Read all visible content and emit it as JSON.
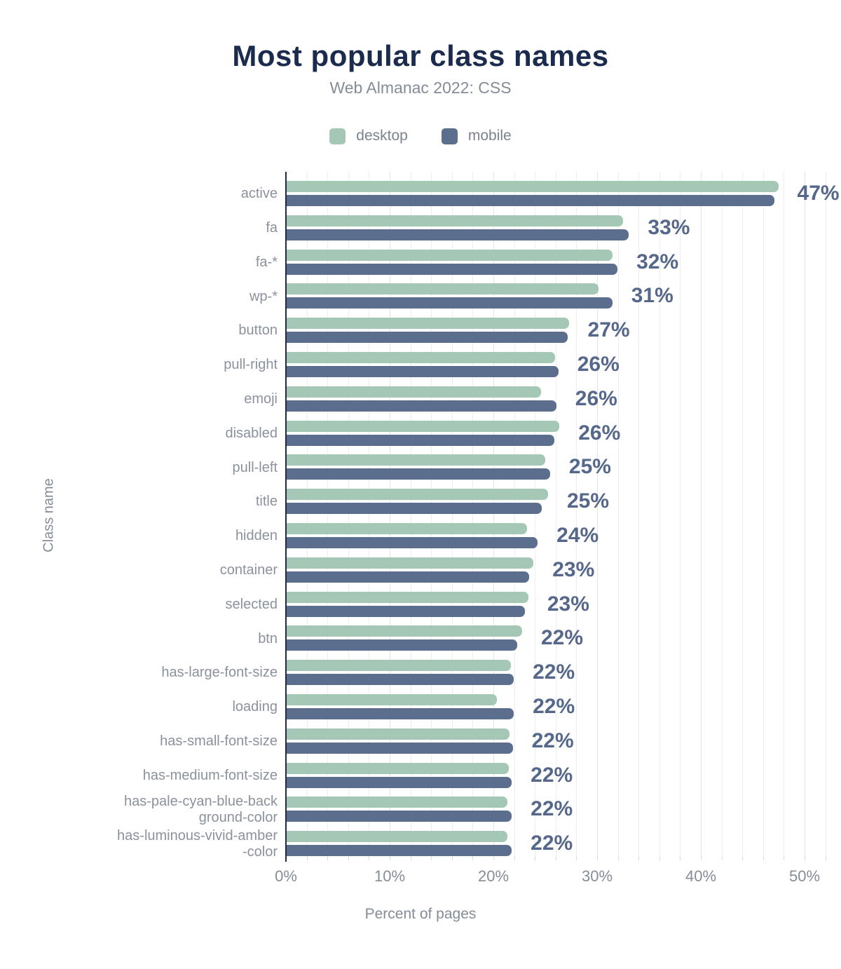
{
  "header": {
    "title": "Most popular class names",
    "subtitle": "Web Almanac 2022: CSS"
  },
  "legend": [
    {
      "name": "desktop",
      "color": "#a4c8b5"
    },
    {
      "name": "mobile",
      "color": "#5c6e8d"
    }
  ],
  "axes": {
    "x_title": "Percent of pages",
    "y_title": "Class name",
    "x_tick_labels": [
      "0%",
      "10%",
      "20%",
      "30%",
      "40%",
      "50%"
    ],
    "x_tick_values": [
      0,
      10,
      20,
      30,
      40,
      50
    ]
  },
  "colors": {
    "title_navy": "#1b2b4d",
    "desktop_bar": "#a4c8b5",
    "mobile_bar": "#5c6e8d",
    "value_label": "#55678a",
    "axis_line": "#1c2b47",
    "gridline": "#ededf0",
    "muted_text": "#858c98"
  },
  "chart_data": {
    "type": "bar",
    "orientation": "horizontal",
    "title": "Most popular class names",
    "subtitle": "Web Almanac 2022: CSS",
    "xlabel": "Percent of pages",
    "ylabel": "Class name",
    "xlim": [
      0,
      50
    ],
    "grid": true,
    "legend_position": "top-center",
    "categories": [
      "active",
      "fa",
      "fa-*",
      "wp-*",
      "button",
      "pull-right",
      "emoji",
      "disabled",
      "pull-left",
      "title",
      "hidden",
      "container",
      "selected",
      "btn",
      "has-large-font-size",
      "loading",
      "has-small-font-size",
      "has-medium-font-size",
      "has-pale-cyan-blue-background-color",
      "has-luminous-vivid-amber-color"
    ],
    "category_display_lines": [
      [
        "active"
      ],
      [
        "fa"
      ],
      [
        "fa-*"
      ],
      [
        "wp-*"
      ],
      [
        "button"
      ],
      [
        "pull-right"
      ],
      [
        "emoji"
      ],
      [
        "disabled"
      ],
      [
        "pull-left"
      ],
      [
        "title"
      ],
      [
        "hidden"
      ],
      [
        "container"
      ],
      [
        "selected"
      ],
      [
        "btn"
      ],
      [
        "has-large-font-size"
      ],
      [
        "loading"
      ],
      [
        "has-small-font-size"
      ],
      [
        "has-medium-font-size"
      ],
      [
        "has-pale-cyan-blue-back",
        "ground-color"
      ],
      [
        "has-luminous-vivid-amber",
        "-color"
      ]
    ],
    "series": [
      {
        "name": "desktop",
        "values": [
          47.4,
          32.4,
          31.4,
          30.1,
          27.2,
          25.9,
          24.5,
          26.3,
          24.9,
          25.2,
          23.2,
          23.8,
          23.3,
          22.7,
          21.6,
          20.3,
          21.5,
          21.4,
          21.3,
          21.3
        ]
      },
      {
        "name": "mobile",
        "values": [
          47.0,
          33.0,
          31.9,
          31.4,
          27.1,
          26.2,
          26.0,
          25.8,
          25.4,
          24.6,
          24.2,
          23.4,
          23.0,
          22.2,
          21.9,
          21.9,
          21.8,
          21.7,
          21.7,
          21.7
        ]
      }
    ],
    "value_labels": [
      "47%",
      "33%",
      "32%",
      "31%",
      "27%",
      "26%",
      "26%",
      "26%",
      "25%",
      "25%",
      "24%",
      "23%",
      "23%",
      "22%",
      "22%",
      "22%",
      "22%",
      "22%",
      "22%",
      "22%"
    ]
  }
}
